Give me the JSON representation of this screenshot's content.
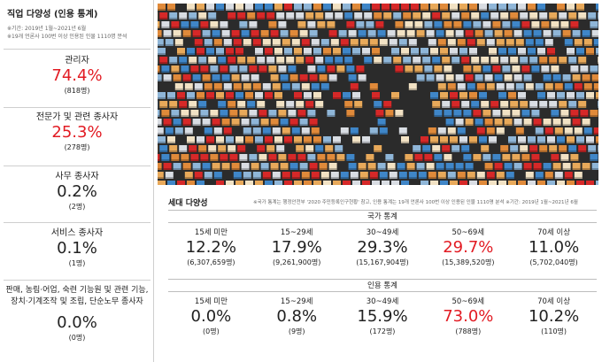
{
  "left_panel": {
    "title": "직업 다양성 (인용 통계)",
    "note1": "※기간: 2019년 1월~2021년 6월",
    "note2": "※19개 언론사 100번 이상 인용된 인물 1110명 분석",
    "occupations": [
      {
        "label": "관리자",
        "pct": "74.4%",
        "count": "(818명)",
        "highlight": true
      },
      {
        "label": "전문가 및 관련 종사자",
        "pct": "25.3%",
        "count": "(278명)",
        "highlight": true
      },
      {
        "label": "사무 종사자",
        "pct": "0.2%",
        "count": "(2명)",
        "highlight": false
      },
      {
        "label": "서비스 종사자",
        "pct": "0.1%",
        "count": "(1명)",
        "highlight": false
      },
      {
        "label": "판매, 농림·어업, 숙련 기능원 및 관련 기능,",
        "label2": "장치·기계조작 및 조립, 단순노무 종사자",
        "pct": "0.0%",
        "count": "(0명)",
        "highlight": false
      }
    ]
  },
  "generation": {
    "title": "세대 다양성",
    "note": "※국가 통계는 행정안전부 '2020 주민등록인구현황' 참고, 인용 통계는 19개 언론사 100번 이상 인용된 인물 1110명 분석 ※기간: 2019년 1월~2021년 6월",
    "national_label": "국가 통계",
    "citation_label": "인용 통계",
    "national": [
      {
        "age": "15세 미만",
        "pct": "12.2%",
        "count": "(6,307,659명)",
        "highlight": false
      },
      {
        "age": "15~29세",
        "pct": "17.9%",
        "count": "(9,261,900명)",
        "highlight": false
      },
      {
        "age": "30~49세",
        "pct": "29.3%",
        "count": "(15,167,904명)",
        "highlight": false
      },
      {
        "age": "50~69세",
        "pct": "29.7%",
        "count": "(15,389,520명)",
        "highlight": true
      },
      {
        "age": "70세 이상",
        "pct": "11.0%",
        "count": "(5,702,040명)",
        "highlight": false
      }
    ],
    "citation": [
      {
        "age": "15세 미만",
        "pct": "0.0%",
        "count": "(0명)",
        "highlight": false
      },
      {
        "age": "15~29세",
        "pct": "0.8%",
        "count": "(9명)",
        "highlight": false
      },
      {
        "age": "30~49세",
        "pct": "15.9%",
        "count": "(172명)",
        "highlight": false
      },
      {
        "age": "50~69세",
        "pct": "73.0%",
        "count": "(788명)",
        "highlight": true
      },
      {
        "age": "70세 이상",
        "pct": "10.2%",
        "count": "(110명)",
        "highlight": false
      }
    ]
  },
  "image": {
    "description_icon": "colored-blocks-mosaic",
    "colors": [
      "#d9dde3",
      "#3f86c8",
      "#e08a3a",
      "#e8a95a",
      "#d62828",
      "#f2e2c4",
      "#8fb6d8"
    ]
  }
}
